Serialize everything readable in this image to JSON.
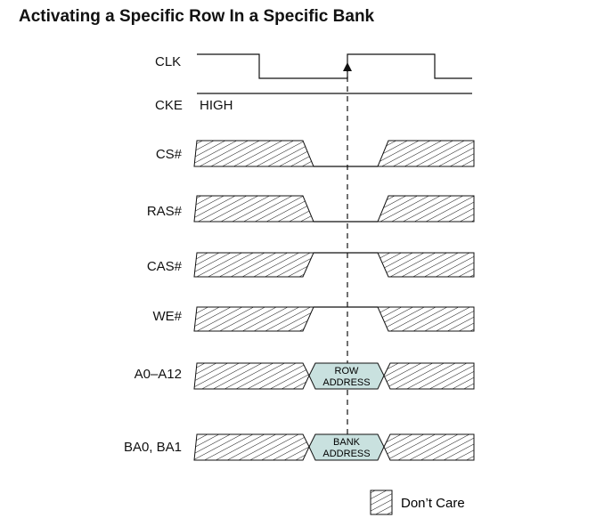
{
  "title": "Activating a Specific Row In a Specific Bank",
  "signals": {
    "clk": "CLK",
    "cke": "CKE",
    "cke_state": "HIGH",
    "cs": "CS#",
    "ras": "RAS#",
    "cas": "CAS#",
    "we": "WE#",
    "addr": "A0–A12",
    "ba": "BA0, BA1"
  },
  "cells": {
    "row_line1": "ROW",
    "row_line2": "ADDRESS",
    "bank_line1": "BANK",
    "bank_line2": "ADDRESS"
  },
  "legend": {
    "dont_care": "Don’t Care"
  },
  "colors": {
    "cell_fill": "#c9e1df",
    "line": "#111111"
  }
}
